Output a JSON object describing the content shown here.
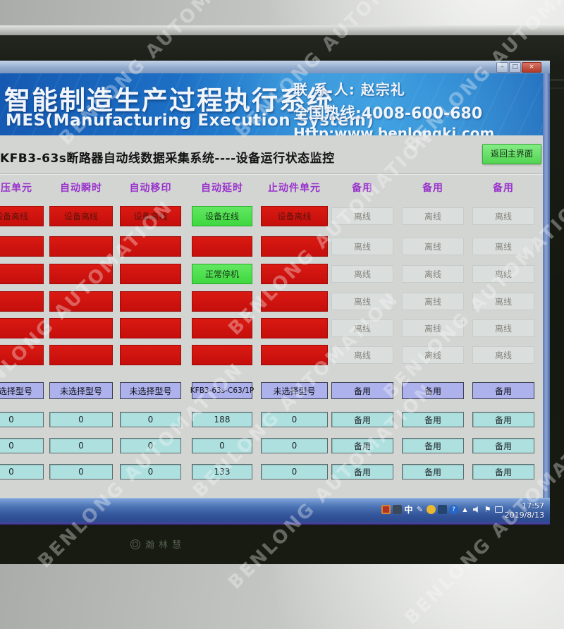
{
  "watermark": {
    "text": "BENLONG AUTOMATION"
  },
  "titlebar": {
    "minimize": "–",
    "maximize": "□",
    "close": "×"
  },
  "banner": {
    "title_cn": "智能制造生产过程执行系统",
    "title_en": "MES(Manufacturing Execution System)",
    "contact": "联 系 人: 赵宗礼",
    "hotline": "全国热线:4008-600-680",
    "website": "Http:www.benlongkj.com"
  },
  "page": {
    "title": "KFB3-63s断路器自动线数据采集系统----设备运行状态监控",
    "return_button_label": "返回主界面"
  },
  "grid": {
    "headers": [
      "耐压单元",
      "自动瞬时",
      "自动移印",
      "自动延时",
      "止动件单元",
      "备用",
      "备用",
      "备用"
    ],
    "status_rows": [
      [
        {
          "t": "设备离线",
          "s": "red"
        },
        {
          "t": "设备离线",
          "s": "red"
        },
        {
          "t": "设备离线",
          "s": "red"
        },
        {
          "t": "设备在线",
          "s": "green"
        },
        {
          "t": "设备离线",
          "s": "red"
        },
        {
          "t": "离线",
          "s": "gray"
        },
        {
          "t": "离线",
          "s": "gray"
        },
        {
          "t": "离线",
          "s": "gray"
        }
      ],
      [
        {
          "t": "",
          "s": "red"
        },
        {
          "t": "",
          "s": "red"
        },
        {
          "t": "",
          "s": "red"
        },
        {
          "t": "",
          "s": "red"
        },
        {
          "t": "",
          "s": "red"
        },
        {
          "t": "离线",
          "s": "gray"
        },
        {
          "t": "离线",
          "s": "gray"
        },
        {
          "t": "离线",
          "s": "gray"
        }
      ],
      [
        {
          "t": "",
          "s": "red"
        },
        {
          "t": "",
          "s": "red"
        },
        {
          "t": "",
          "s": "red"
        },
        {
          "t": "正常停机",
          "s": "green"
        },
        {
          "t": "",
          "s": "red"
        },
        {
          "t": "离线",
          "s": "gray"
        },
        {
          "t": "离线",
          "s": "gray"
        },
        {
          "t": "离线",
          "s": "gray"
        }
      ],
      [
        {
          "t": "",
          "s": "red"
        },
        {
          "t": "",
          "s": "red"
        },
        {
          "t": "",
          "s": "red"
        },
        {
          "t": "",
          "s": "red"
        },
        {
          "t": "",
          "s": "red"
        },
        {
          "t": "离线",
          "s": "gray"
        },
        {
          "t": "离线",
          "s": "gray"
        },
        {
          "t": "离线",
          "s": "gray"
        }
      ],
      [
        {
          "t": "",
          "s": "red"
        },
        {
          "t": "",
          "s": "red"
        },
        {
          "t": "",
          "s": "red"
        },
        {
          "t": "",
          "s": "red"
        },
        {
          "t": "",
          "s": "red"
        },
        {
          "t": "离线",
          "s": "gray"
        },
        {
          "t": "离线",
          "s": "gray"
        },
        {
          "t": "离线",
          "s": "gray"
        }
      ],
      [
        {
          "t": "",
          "s": "red"
        },
        {
          "t": "",
          "s": "red"
        },
        {
          "t": "",
          "s": "red"
        },
        {
          "t": "",
          "s": "red"
        },
        {
          "t": "",
          "s": "red"
        },
        {
          "t": "离线",
          "s": "gray"
        },
        {
          "t": "离线",
          "s": "gray"
        },
        {
          "t": "离线",
          "s": "gray"
        }
      ]
    ],
    "model_row": [
      {
        "t": "未选择型号"
      },
      {
        "t": "未选择型号"
      },
      {
        "t": "未选择型号"
      },
      {
        "t": "KFB3-63s-C63/1P"
      },
      {
        "t": "未选择型号"
      },
      {
        "t": "备用"
      },
      {
        "t": "备用"
      },
      {
        "t": "备用"
      }
    ],
    "counter_rows": [
      [
        {
          "t": "0"
        },
        {
          "t": "0"
        },
        {
          "t": "0"
        },
        {
          "t": "188"
        },
        {
          "t": "0"
        },
        {
          "t": "备用"
        },
        {
          "t": "备用"
        },
        {
          "t": "备用"
        }
      ],
      [
        {
          "t": "0"
        },
        {
          "t": "0"
        },
        {
          "t": "0"
        },
        {
          "t": "0"
        },
        {
          "t": "0"
        },
        {
          "t": "备用"
        },
        {
          "t": "备用"
        },
        {
          "t": "备用"
        }
      ],
      [
        {
          "t": "0"
        },
        {
          "t": "0"
        },
        {
          "t": "0"
        },
        {
          "t": "133"
        },
        {
          "t": "0"
        },
        {
          "t": "备用"
        },
        {
          "t": "备用"
        },
        {
          "t": "备用"
        }
      ]
    ]
  },
  "taskbar": {
    "ime_indicator": "中",
    "hidden_icons_glyph": "▲",
    "help_glyph": "?",
    "flag_glyph": "⚑",
    "pen_glyph": "✎",
    "time": "17:57",
    "date": "2019/8/13"
  },
  "monitor": {
    "brand": "瀚林慧"
  },
  "colors": {
    "status_red": "#d01010",
    "status_green": "#50e050",
    "header_purple": "#9933cc",
    "model_lavender": "#aeb2ec",
    "counter_cyan": "#b0e0e0",
    "banner_blue": "#1f78cc"
  }
}
